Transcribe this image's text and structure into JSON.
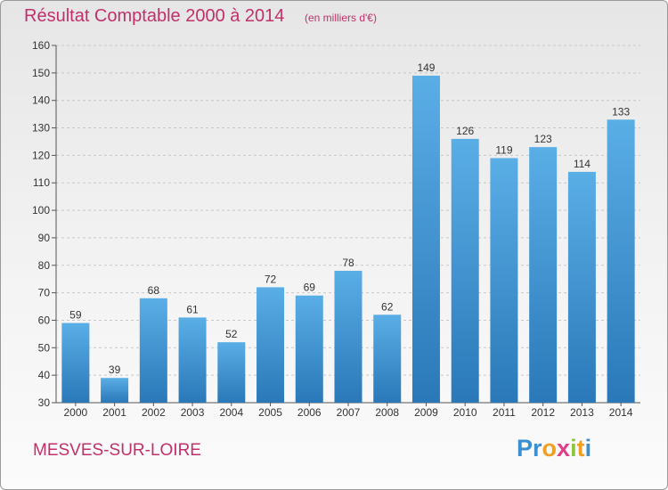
{
  "header": {
    "title": "Résultat Comptable 2000 à 2014",
    "subtitle": "(en milliers d'€)"
  },
  "footer": {
    "commune": "MESVES-SUR-LOIRE",
    "logo_letters": [
      "P",
      "r",
      "o",
      "x",
      "i",
      "t",
      "i"
    ]
  },
  "colors": {
    "accent": "#c0306a",
    "bar_top": "#5aaee6",
    "bar_bottom": "#2a78b8",
    "logo_letters": [
      "#3a8fd0",
      "#3a8fd0",
      "#f0a020",
      "#e03c8a",
      "#8cc63f",
      "#f0a020",
      "#3a8fd0"
    ]
  },
  "chart_data": {
    "type": "bar",
    "categories": [
      "2000",
      "2001",
      "2002",
      "2003",
      "2004",
      "2005",
      "2006",
      "2007",
      "2008",
      "2009",
      "2010",
      "2011",
      "2012",
      "2013",
      "2014"
    ],
    "values": [
      59,
      39,
      68,
      61,
      52,
      72,
      69,
      78,
      62,
      149,
      126,
      119,
      123,
      114,
      133
    ],
    "value_labels": [
      "59",
      "39",
      "68",
      "61",
      "52",
      "72",
      "69",
      "78",
      "62",
      "149",
      "126",
      "119",
      "123",
      "114",
      "133"
    ],
    "yticks": [
      "30",
      "40",
      "50",
      "60",
      "70",
      "80",
      "90",
      "100",
      "110",
      "120",
      "130",
      "140",
      "150",
      "160"
    ],
    "ylim": [
      30,
      160
    ],
    "grid": true,
    "xlabel": "",
    "ylabel": ""
  }
}
